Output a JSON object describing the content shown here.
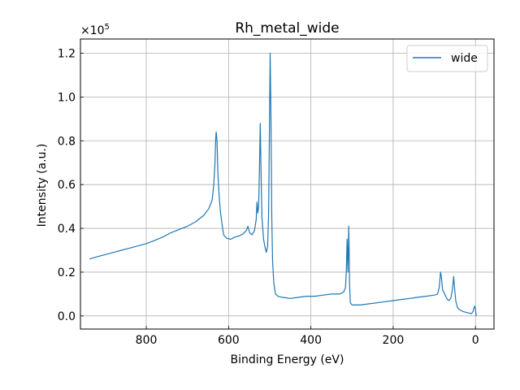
{
  "chart_data": {
    "type": "line",
    "title": "Rh_metal_wide",
    "xlabel": "Binding Energy (eV)",
    "ylabel": "Intensity (a.u.)",
    "y_multiplier": "×10",
    "y_multiplier_exp": "5",
    "xlim": [
      960,
      -45
    ],
    "ylim": [
      -0.06,
      1.265
    ],
    "x_reversed": true,
    "grid": true,
    "legend_position": "top-right",
    "xticks": [
      800,
      600,
      400,
      200,
      0
    ],
    "xtick_labels": [
      "800",
      "600",
      "400",
      "200",
      "0"
    ],
    "yticks": [
      0.0,
      0.2,
      0.4,
      0.6,
      0.8,
      1.0,
      1.2
    ],
    "ytick_labels": [
      "0.0",
      "0.2",
      "0.4",
      "0.6",
      "0.8",
      "1.0",
      "1.2"
    ],
    "series": [
      {
        "name": "wide",
        "color": "#1f77b4",
        "points": [
          [
            938,
            0.26
          ],
          [
            920,
            0.27
          ],
          [
            900,
            0.28
          ],
          [
            880,
            0.29
          ],
          [
            860,
            0.3
          ],
          [
            840,
            0.31
          ],
          [
            820,
            0.32
          ],
          [
            800,
            0.33
          ],
          [
            780,
            0.345
          ],
          [
            760,
            0.36
          ],
          [
            740,
            0.38
          ],
          [
            720,
            0.395
          ],
          [
            700,
            0.41
          ],
          [
            680,
            0.43
          ],
          [
            660,
            0.46
          ],
          [
            648,
            0.49
          ],
          [
            640,
            0.53
          ],
          [
            636,
            0.6
          ],
          [
            633,
            0.7
          ],
          [
            631,
            0.82
          ],
          [
            630,
            0.84
          ],
          [
            628,
            0.8
          ],
          [
            626,
            0.65
          ],
          [
            623,
            0.55
          ],
          [
            620,
            0.48
          ],
          [
            616,
            0.42
          ],
          [
            612,
            0.37
          ],
          [
            605,
            0.355
          ],
          [
            595,
            0.35
          ],
          [
            585,
            0.36
          ],
          [
            575,
            0.365
          ],
          [
            565,
            0.375
          ],
          [
            557,
            0.39
          ],
          [
            553,
            0.41
          ],
          [
            549,
            0.38
          ],
          [
            543,
            0.37
          ],
          [
            537,
            0.39
          ],
          [
            533,
            0.44
          ],
          [
            531,
            0.52
          ],
          [
            529,
            0.47
          ],
          [
            527,
            0.5
          ],
          [
            525,
            0.66
          ],
          [
            523,
            0.88
          ],
          [
            521,
            0.66
          ],
          [
            519,
            0.45
          ],
          [
            515,
            0.35
          ],
          [
            511,
            0.31
          ],
          [
            508,
            0.29
          ],
          [
            505,
            0.32
          ],
          [
            503,
            0.45
          ],
          [
            501,
            0.8
          ],
          [
            499,
            1.2
          ],
          [
            497,
            0.9
          ],
          [
            495,
            0.45
          ],
          [
            493,
            0.25
          ],
          [
            490,
            0.15
          ],
          [
            486,
            0.1
          ],
          [
            480,
            0.09
          ],
          [
            470,
            0.085
          ],
          [
            450,
            0.08
          ],
          [
            430,
            0.085
          ],
          [
            410,
            0.09
          ],
          [
            390,
            0.09
          ],
          [
            370,
            0.095
          ],
          [
            350,
            0.1
          ],
          [
            330,
            0.1
          ],
          [
            320,
            0.11
          ],
          [
            316,
            0.13
          ],
          [
            314,
            0.2
          ],
          [
            312,
            0.35
          ],
          [
            311,
            0.28
          ],
          [
            310,
            0.2
          ],
          [
            309,
            0.3
          ],
          [
            308,
            0.41
          ],
          [
            307,
            0.3
          ],
          [
            306,
            0.15
          ],
          [
            304,
            0.06
          ],
          [
            300,
            0.05
          ],
          [
            280,
            0.05
          ],
          [
            260,
            0.055
          ],
          [
            240,
            0.06
          ],
          [
            220,
            0.065
          ],
          [
            200,
            0.07
          ],
          [
            180,
            0.075
          ],
          [
            160,
            0.08
          ],
          [
            140,
            0.085
          ],
          [
            120,
            0.09
          ],
          [
            100,
            0.095
          ],
          [
            92,
            0.1
          ],
          [
            88,
            0.13
          ],
          [
            85,
            0.2
          ],
          [
            83,
            0.18
          ],
          [
            80,
            0.12
          ],
          [
            75,
            0.1
          ],
          [
            70,
            0.08
          ],
          [
            65,
            0.07
          ],
          [
            60,
            0.08
          ],
          [
            56,
            0.12
          ],
          [
            53,
            0.18
          ],
          [
            51,
            0.13
          ],
          [
            48,
            0.07
          ],
          [
            44,
            0.04
          ],
          [
            40,
            0.03
          ],
          [
            30,
            0.02
          ],
          [
            20,
            0.015
          ],
          [
            10,
            0.01
          ],
          [
            6,
            0.02
          ],
          [
            4,
            0.035
          ],
          [
            2,
            0.045
          ],
          [
            0,
            0.03
          ],
          [
            -2,
            0.0
          ]
        ]
      }
    ]
  }
}
